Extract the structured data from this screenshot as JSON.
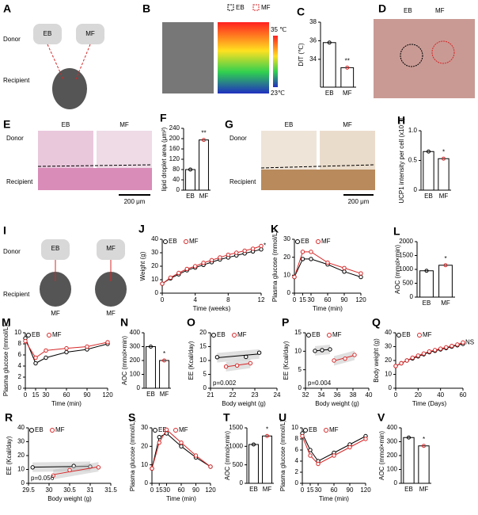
{
  "illustrations": [
    {
      "panel": "A",
      "labels": [
        "EB",
        "MF",
        "Donor",
        "Recipient"
      ]
    },
    {
      "panel": "B",
      "labels": [
        "EB",
        "MF",
        "35 ℃",
        "23℃"
      ]
    },
    {
      "panel": "D",
      "labels": [
        "EB",
        "MF"
      ]
    },
    {
      "panel": "E",
      "labels": [
        "EB",
        "MF",
        "Donor",
        "Recipient",
        "200 μm"
      ]
    },
    {
      "panel": "G",
      "labels": [
        "EB",
        "MF",
        "Donor",
        "Recipient",
        "200 μm"
      ]
    },
    {
      "panel": "I",
      "labels": [
        "EB",
        "MF",
        "Donor",
        "Recipient",
        "MF",
        "MF"
      ]
    }
  ],
  "chart_data": [
    {
      "panel": "C",
      "type": "bar",
      "ylabel": "DIT (℃)",
      "categories": [
        "EB",
        "MF"
      ],
      "values": [
        35.8,
        33.1
      ],
      "colors": [
        "#000000",
        "#d62728"
      ],
      "ylim": [
        31,
        38
      ],
      "yticks": [
        34,
        36,
        38
      ],
      "annotation": "**"
    },
    {
      "panel": "F",
      "type": "bar",
      "ylabel": "lipid droplet area (μm²)",
      "categories": [
        "EB",
        "MF"
      ],
      "values": [
        80,
        195
      ],
      "colors": [
        "#000000",
        "#d62728"
      ],
      "ylim": [
        0,
        240
      ],
      "yticks": [
        0,
        40,
        80,
        120,
        160,
        200,
        240
      ],
      "annotation": "**"
    },
    {
      "panel": "H",
      "type": "bar",
      "ylabel": "UCP1 intensity per cell (x10⁻¹)",
      "categories": [
        "EB",
        "MF"
      ],
      "values": [
        0.65,
        0.53
      ],
      "colors": [
        "#000000",
        "#d62728"
      ],
      "ylim": [
        0,
        1
      ],
      "yticks": [
        0,
        0.5,
        {
          "value": 1,
          "label": "1.0"
        }
      ],
      "annotation": "*"
    },
    {
      "panel": "J",
      "type": "line",
      "xlabel": "Time (weeks)",
      "ylabel": "Weight (g)",
      "x": [
        0,
        1,
        2,
        3,
        4,
        5,
        6,
        7,
        8,
        9,
        10,
        11,
        12
      ],
      "xlim": [
        0,
        12
      ],
      "xticks": [
        0,
        4,
        8,
        12
      ],
      "ylim": [
        0,
        40
      ],
      "yticks": [
        0,
        10,
        20,
        30,
        40
      ],
      "annotation": "*",
      "series": [
        {
          "name": "EB",
          "color": "#000000",
          "values": [
            7,
            11,
            14,
            17,
            19,
            21,
            23,
            25,
            26.5,
            28,
            29.5,
            31,
            32.5
          ]
        },
        {
          "name": "MF",
          "color": "#d62728",
          "values": [
            7,
            11.5,
            15,
            18,
            20,
            22.5,
            24.5,
            26.5,
            28.5,
            30,
            31.5,
            33,
            35
          ]
        }
      ]
    },
    {
      "panel": "K",
      "type": "line",
      "xlabel": "Time (min)",
      "ylabel": "Plasma glucose (mmol/L)",
      "x": [
        0,
        15,
        30,
        60,
        90,
        120
      ],
      "xlim": [
        0,
        120
      ],
      "xticks": [
        0,
        15,
        30,
        60,
        90,
        120
      ],
      "ylim": [
        0,
        30
      ],
      "yticks": [
        0,
        10,
        20,
        30
      ],
      "series": [
        {
          "name": "EB",
          "color": "#000000",
          "values": [
            9,
            19,
            19,
            16,
            12,
            9
          ]
        },
        {
          "name": "MF",
          "color": "#d62728",
          "values": [
            9,
            23,
            23,
            17,
            14,
            11
          ]
        }
      ]
    },
    {
      "panel": "L",
      "type": "bar",
      "ylabel": "AOC (mmol×min)",
      "categories": [
        "EB",
        "MF"
      ],
      "values": [
        950,
        1150
      ],
      "colors": [
        "#000000",
        "#d62728"
      ],
      "ylim": [
        0,
        2000
      ],
      "yticks": [
        0,
        500,
        1000,
        1500,
        2000
      ],
      "annotation": "*"
    },
    {
      "panel": "M",
      "type": "line",
      "xlabel": "Time (min)",
      "ylabel": "Plasma glucose (mmol/L)",
      "x": [
        0,
        15,
        30,
        60,
        90,
        120
      ],
      "xlim": [
        0,
        120
      ],
      "xticks": [
        0,
        15,
        30,
        60,
        90,
        120
      ],
      "ylim": [
        0,
        10
      ],
      "yticks": [
        0,
        2,
        4,
        6,
        8,
        10
      ],
      "series": [
        {
          "name": "EB",
          "color": "#000000",
          "values": [
            9,
            4.5,
            5.5,
            6.5,
            7,
            8
          ]
        },
        {
          "name": "MF",
          "color": "#d62728",
          "values": [
            8.5,
            5.5,
            6.8,
            7.2,
            7.5,
            8.3
          ]
        }
      ]
    },
    {
      "panel": "N",
      "type": "bar",
      "ylabel": "AOC (mmol×min)",
      "categories": [
        "EB",
        "MF"
      ],
      "values": [
        300,
        200
      ],
      "colors": [
        "#000000",
        "#d62728"
      ],
      "ylim": [
        0,
        400
      ],
      "yticks": [
        0,
        100,
        200,
        300,
        400
      ],
      "annotation": "*"
    },
    {
      "panel": "O",
      "type": "scatter",
      "xlabel": "Body weight (g)",
      "ylabel": "EE (Kcal/day)",
      "xlim": [
        21,
        24
      ],
      "xticks": [
        21,
        22,
        23,
        24
      ],
      "ylim": [
        0,
        20
      ],
      "yticks": [
        0,
        5,
        10,
        15,
        20
      ],
      "annotation": "p=0.002",
      "series": [
        {
          "name": "EB",
          "color": "#000000",
          "x": [
            21.3,
            22.6,
            23.2
          ],
          "values": [
            11.2,
            11.3,
            12.8
          ]
        },
        {
          "name": "MF",
          "color": "#d62728",
          "x": [
            21.7,
            22.2,
            22.8
          ],
          "values": [
            7.8,
            8.2,
            9.0
          ]
        }
      ]
    },
    {
      "panel": "P",
      "type": "scatter",
      "xlabel": "Body weight (g)",
      "ylabel": "EE (Kcal/day)",
      "xlim": [
        32,
        40
      ],
      "xticks": [
        32,
        34,
        36,
        38,
        40
      ],
      "ylim": [
        0,
        15
      ],
      "yticks": [
        0,
        5,
        10,
        15
      ],
      "annotation": "p=0.004",
      "series": [
        {
          "name": "EB",
          "color": "#000000",
          "x": [
            33.2,
            34.1,
            35.1
          ],
          "values": [
            10.1,
            10.3,
            10.5
          ]
        },
        {
          "name": "MF",
          "color": "#d62728",
          "x": [
            35.6,
            37.0,
            38.2
          ],
          "values": [
            7.5,
            8.0,
            9.0
          ]
        }
      ]
    },
    {
      "panel": "Q",
      "type": "line",
      "xlabel": "Time (Days)",
      "ylabel": "Body weight (g)",
      "x": [
        0,
        5,
        10,
        15,
        20,
        25,
        30,
        35,
        40,
        45,
        50,
        55,
        60
      ],
      "xlim": [
        0,
        60
      ],
      "xticks": [
        0,
        20,
        40,
        60
      ],
      "ylim": [
        0,
        40
      ],
      "yticks": [
        0,
        10,
        20,
        30,
        40
      ],
      "annotation": "NS",
      "series": [
        {
          "name": "EB",
          "color": "#000000",
          "values": [
            16,
            18,
            20,
            21.5,
            23,
            24.5,
            26,
            27,
            28,
            29,
            30,
            31,
            32
          ]
        },
        {
          "name": "MF",
          "color": "#d62728",
          "values": [
            16,
            18,
            20,
            22,
            23.5,
            25,
            26.5,
            27.5,
            28.5,
            29.5,
            30.5,
            31.5,
            33
          ]
        }
      ]
    },
    {
      "panel": "R",
      "type": "scatter",
      "xlabel": "Body weight (g)",
      "ylabel": "EE (Kcal/day)",
      "xlim": [
        29.5,
        31.5
      ],
      "xticks": [
        29.5,
        30,
        30.5,
        31,
        31.5
      ],
      "ylim": [
        0,
        40
      ],
      "yticks": [
        0,
        10,
        20,
        30,
        40
      ],
      "annotation": "p=0.056",
      "series": [
        {
          "name": "EB",
          "color": "#000000",
          "x": [
            29.6,
            30.6,
            31.0
          ],
          "values": [
            11.5,
            12.5,
            12.0
          ]
        },
        {
          "name": "MF",
          "color": "#d62728",
          "x": [
            30.1,
            30.5,
            31.2
          ],
          "values": [
            5.5,
            9.5,
            11.5
          ]
        }
      ]
    },
    {
      "panel": "S",
      "type": "line",
      "xlabel": "Time (min)",
      "ylabel": "Plasma glucose (mmol/L)",
      "x": [
        0,
        15,
        30,
        60,
        90,
        120
      ],
      "xlim": [
        0,
        120
      ],
      "xticks": [
        0,
        15,
        30,
        60,
        90,
        120
      ],
      "ylim": [
        0,
        30
      ],
      "yticks": [
        0,
        10,
        20,
        30
      ],
      "series": [
        {
          "name": "EB",
          "color": "#000000",
          "values": [
            8,
            25,
            27,
            20,
            14,
            9
          ]
        },
        {
          "name": "MF",
          "color": "#d62728",
          "values": [
            8,
            22,
            29,
            22,
            15,
            9
          ]
        }
      ]
    },
    {
      "panel": "T",
      "type": "bar",
      "ylabel": "AOC (mmol×min)",
      "categories": [
        "EB",
        "MF"
      ],
      "values": [
        1050,
        1280
      ],
      "colors": [
        "#000000",
        "#d62728"
      ],
      "ylim": [
        0,
        1500
      ],
      "yticks": [
        0,
        500,
        1000,
        1500
      ],
      "annotation": "*"
    },
    {
      "panel": "U",
      "type": "line",
      "xlabel": "Time (min)",
      "ylabel": "Plasma glucose (mmol/L)",
      "x": [
        0,
        15,
        30,
        60,
        90,
        120
      ],
      "xlim": [
        0,
        120
      ],
      "xticks": [
        0,
        15,
        30,
        60,
        90,
        120
      ],
      "ylim": [
        0,
        10
      ],
      "yticks": [
        0,
        2,
        4,
        6,
        8,
        10
      ],
      "series": [
        {
          "name": "EB",
          "color": "#000000",
          "values": [
            9,
            6,
            4,
            5.5,
            7,
            8.5
          ]
        },
        {
          "name": "MF",
          "color": "#d62728",
          "values": [
            8.5,
            5,
            3.5,
            5,
            6.5,
            8
          ]
        }
      ]
    },
    {
      "panel": "V",
      "type": "bar",
      "ylabel": "AOC (mmol×min)",
      "categories": [
        "EB",
        "MF"
      ],
      "values": [
        330,
        270
      ],
      "colors": [
        "#000000",
        "#d62728"
      ],
      "ylim": [
        0,
        400
      ],
      "yticks": [
        0,
        100,
        200,
        300,
        400
      ],
      "annotation": "*"
    }
  ]
}
